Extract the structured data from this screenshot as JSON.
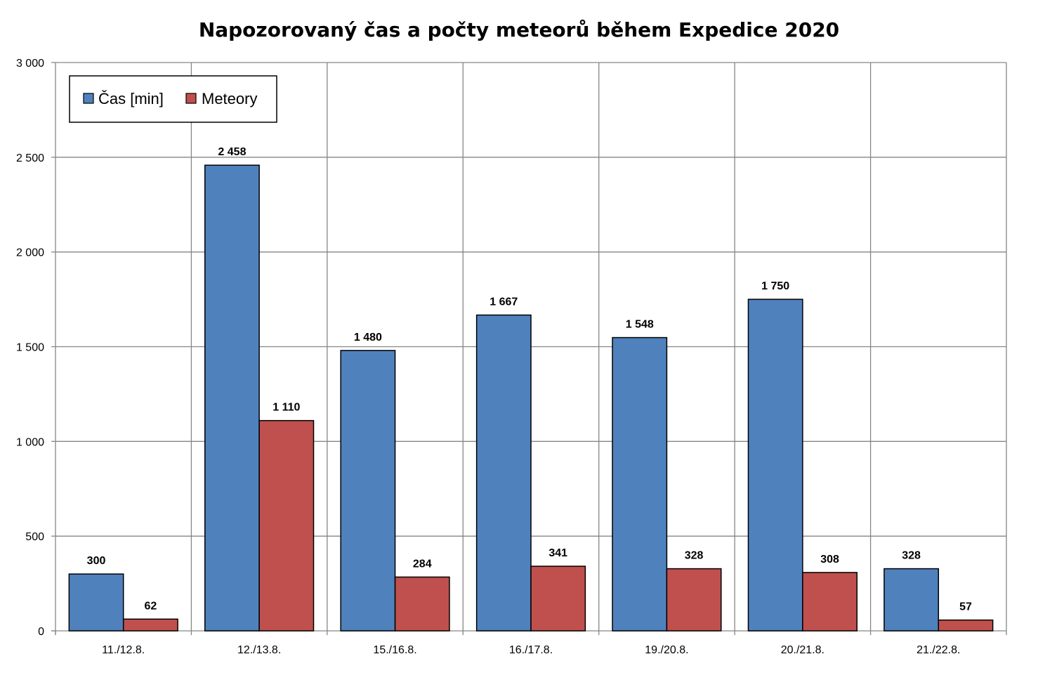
{
  "chart_data": {
    "type": "bar",
    "title": "Napozorovaný čas a počty meteorů během Expedice 2020",
    "categories": [
      "11./12.8.",
      "12./13.8.",
      "15./16.8.",
      "16./17.8.",
      "19./20.8.",
      "20./21.8.",
      "21./22.8."
    ],
    "series": [
      {
        "name": "Čas [min]",
        "color": "#4F81BD",
        "values": [
          300,
          2458,
          1480,
          1667,
          1548,
          1750,
          328
        ],
        "labels": [
          "300",
          "2 458",
          "1 480",
          "1 667",
          "1 548",
          "1 750",
          "328"
        ]
      },
      {
        "name": "Meteory",
        "color": "#C0504D",
        "values": [
          62,
          1110,
          284,
          341,
          328,
          308,
          57
        ],
        "labels": [
          "62",
          "1 110",
          "284",
          "341",
          "328",
          "308",
          "57"
        ]
      }
    ],
    "ylim": [
      0,
      3000
    ],
    "yticks": [
      0,
      500,
      1000,
      1500,
      2000,
      2500,
      3000
    ],
    "ytick_labels": [
      "0",
      "500",
      "1 000",
      "1 500",
      "2 000",
      "2 500",
      "3 000"
    ],
    "grid": true,
    "legend_position": "top-left"
  }
}
